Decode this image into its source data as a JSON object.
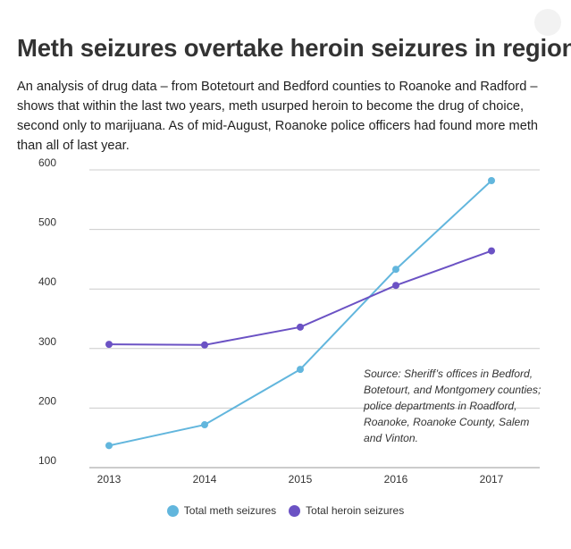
{
  "colors": {
    "meth": "#62b6dd",
    "heroin": "#6b52c4",
    "grid": "#cccccc",
    "axis": "#999999"
  },
  "chart_data": {
    "type": "line",
    "title": "Meth seizures overtake heroin seizures in region",
    "subtitle": "An analysis of drug data – from Botetourt and Bedford counties to Roanoke and Radford – shows that within the last two years, meth usurped heroin to become the drug of choice, second only to marijuana. As of mid-August, Roanoke police officers had found more meth than all of last year.",
    "x": [
      "2013",
      "2014",
      "2015",
      "2016",
      "2017"
    ],
    "series": [
      {
        "name": "Total meth seizures",
        "values": [
          137,
          172,
          265,
          433,
          582
        ]
      },
      {
        "name": "Total heroin seizures",
        "values": [
          307,
          306,
          336,
          406,
          464
        ]
      }
    ],
    "yticks": [
      "600",
      "500",
      "400",
      "300",
      "200",
      "100"
    ],
    "ylim": [
      100,
      600
    ],
    "xlabel": "",
    "ylabel": "",
    "grid": true,
    "legend_placement": "bottom-center",
    "annotation": "Source: Sheriff’s offices in Bedford, Botetourt, and Montgomery counties; police departments in Roadford, Roanoke, Roanoke County, Salem and Vinton."
  }
}
